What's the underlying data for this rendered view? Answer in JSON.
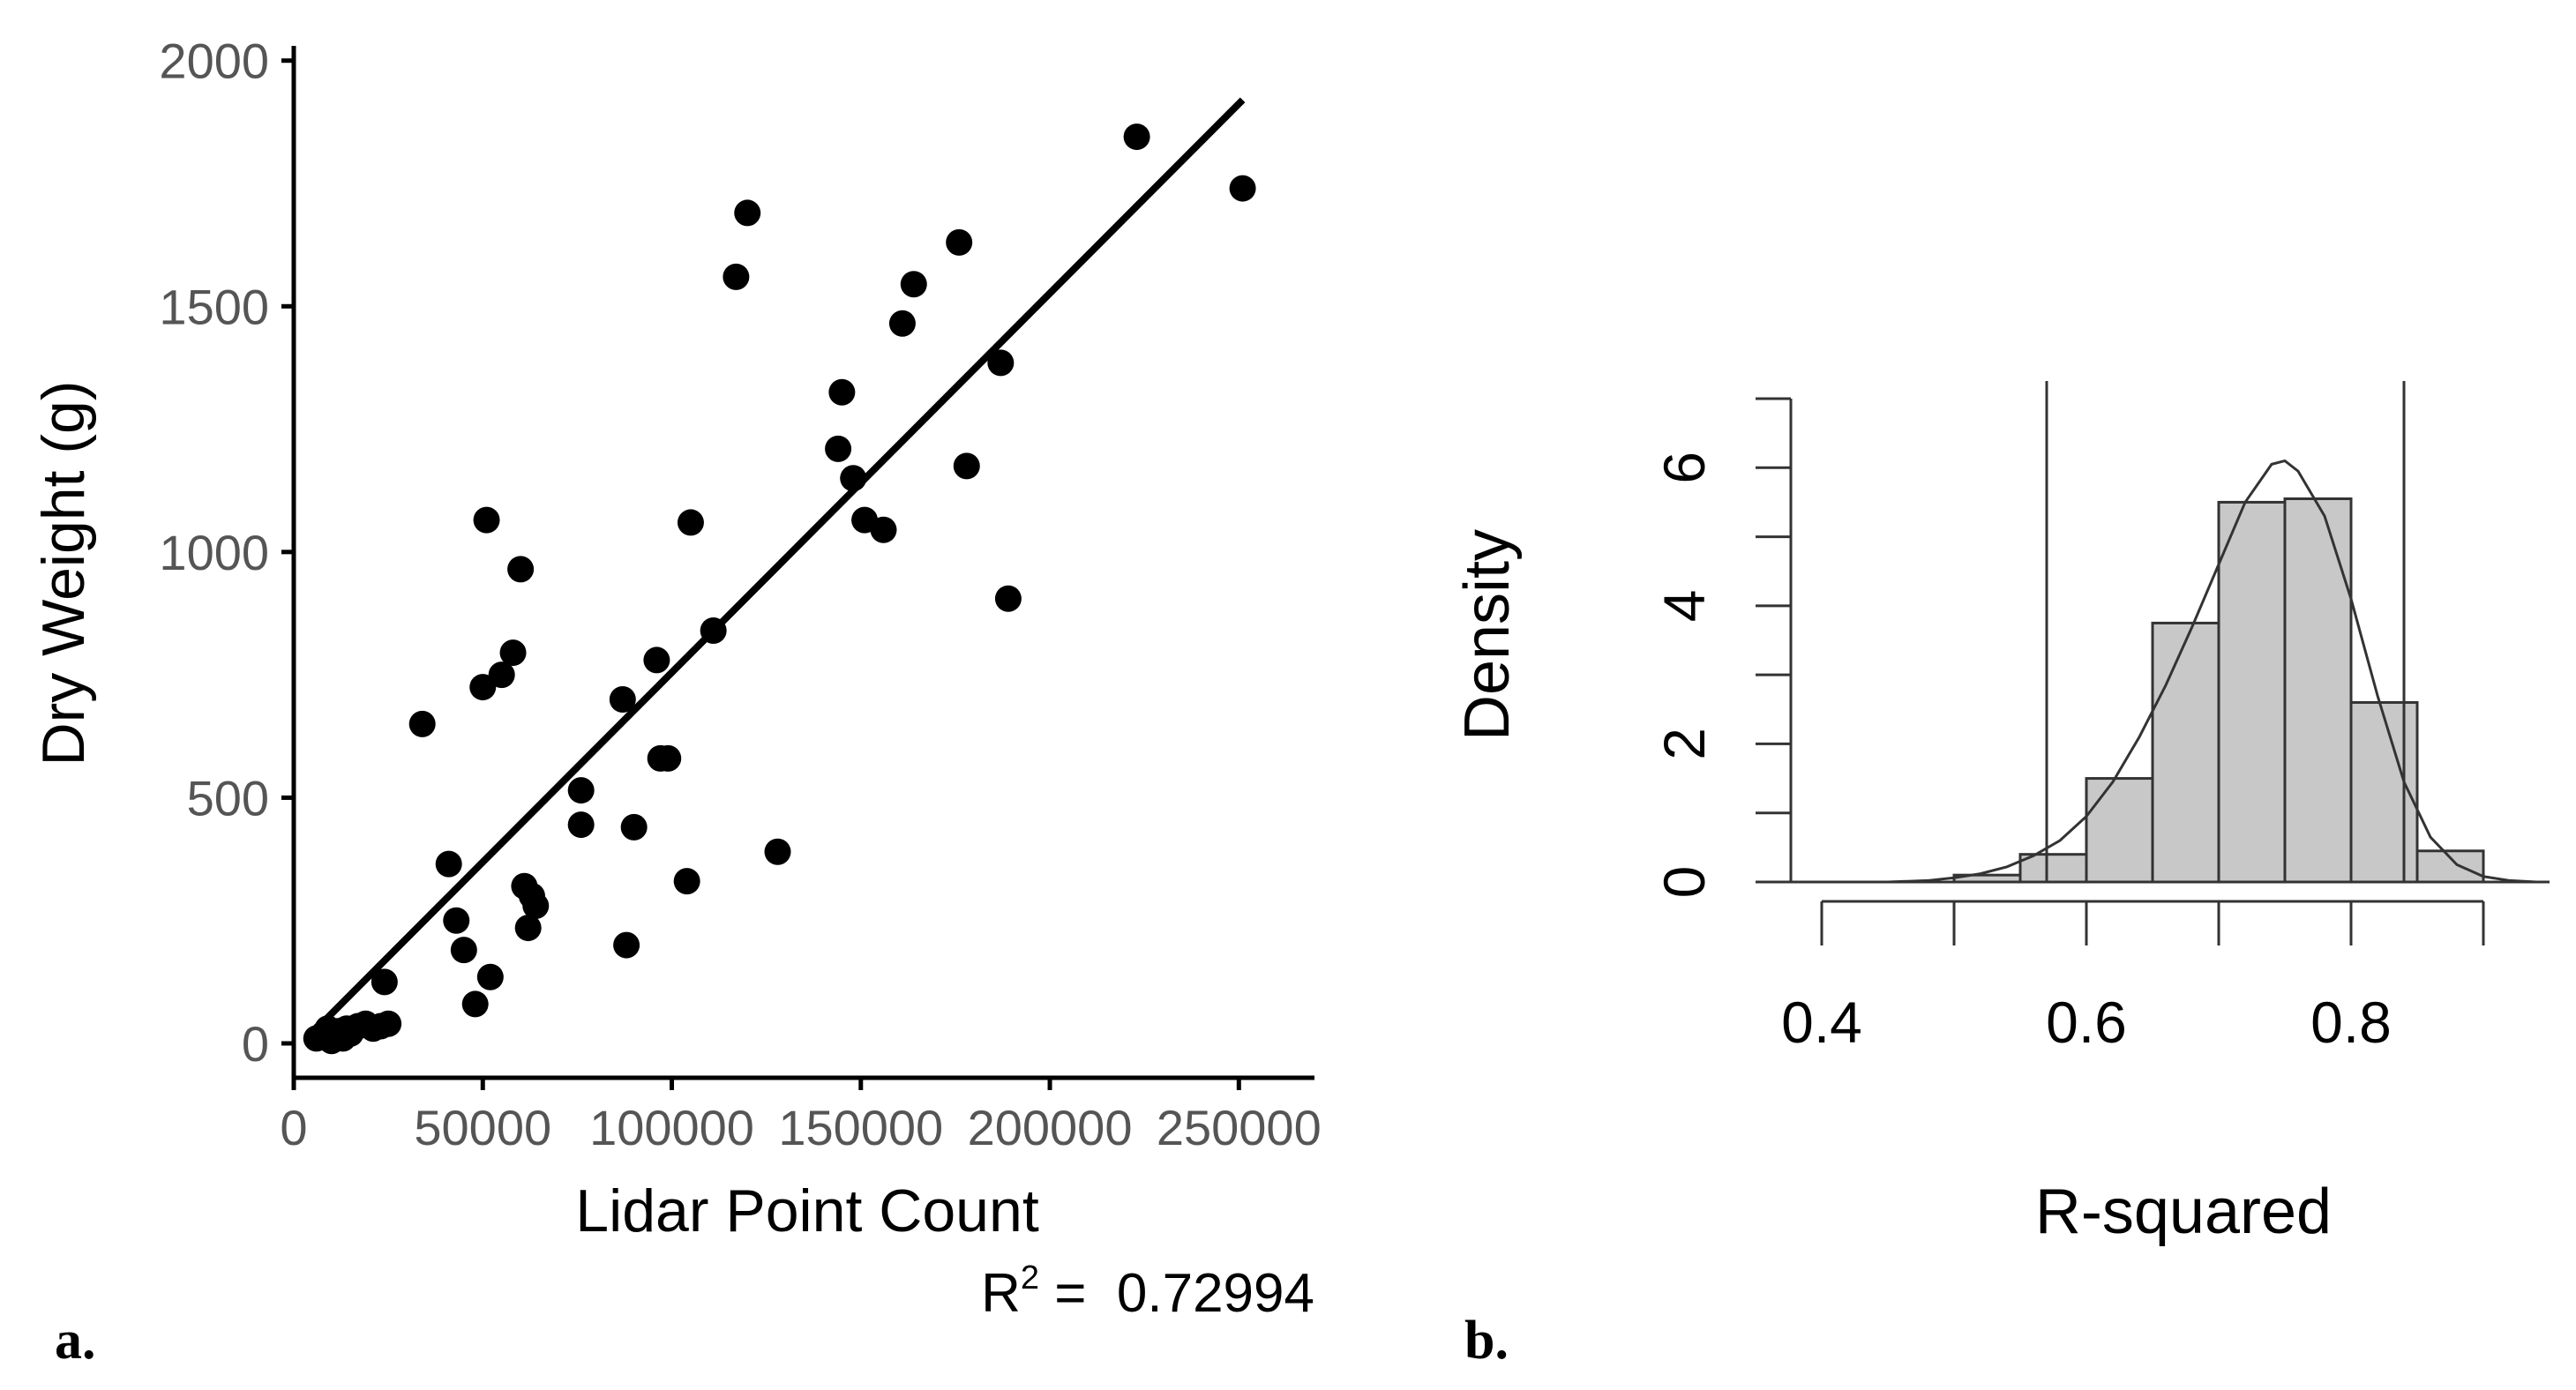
{
  "panels": {
    "a": {
      "letter": "a."
    },
    "b": {
      "letter": "b."
    }
  },
  "colors": {
    "points": "#000000",
    "bar_fill": "#c8c8c8",
    "axis_a": "#000000",
    "tick_label_a": "#555555",
    "axis_b": "#333333"
  },
  "chart_data": [
    {
      "type": "scatter",
      "title": "",
      "xlabel": "Lidar Point Count",
      "ylabel": "Dry Weight (g)",
      "xlim": [
        0,
        270000
      ],
      "ylim": [
        -70,
        2030
      ],
      "xticks": [
        0,
        50000,
        100000,
        150000,
        200000,
        250000
      ],
      "xtick_labels": [
        "0",
        "50000",
        "100000",
        "150000",
        "200000",
        "250000"
      ],
      "yticks": [
        0,
        500,
        1000,
        1500,
        2000
      ],
      "ytick_labels": [
        "0",
        "500",
        "1000",
        "1500",
        "2000"
      ],
      "grid": false,
      "annotation": {
        "label": "R",
        "sup": "2",
        "rest": " =  0.72994"
      },
      "fit_line": {
        "x": [
          8000,
          251000
        ],
        "y": [
          45,
          1920
        ]
      },
      "series": [
        {
          "x": [
            6000,
            8000,
            9000,
            10000,
            11000,
            12000,
            13000,
            14000,
            15000,
            17000,
            19000,
            21000,
            23000,
            25000,
            24000,
            34000,
            41000,
            43000,
            45000,
            48000,
            50000,
            52000,
            55000,
            58000,
            60000,
            51000,
            61000,
            62000,
            64000,
            63000,
            76000,
            76000,
            87000,
            88000,
            90000,
            96000,
            97000,
            99000,
            104000,
            105000,
            111000,
            117000,
            120000,
            128000,
            144000,
            145000,
            148000,
            151000,
            156000,
            161000,
            164000,
            176000,
            178000,
            187000,
            189000,
            223000,
            251000
          ],
          "y": [
            10,
            20,
            30,
            5,
            15,
            25,
            10,
            30,
            20,
            35,
            40,
            30,
            35,
            40,
            125,
            650,
            365,
            250,
            190,
            80,
            725,
            135,
            750,
            795,
            965,
            1065,
            320,
            235,
            280,
            300,
            515,
            445,
            700,
            200,
            440,
            780,
            580,
            580,
            330,
            1060,
            840,
            1560,
            1690,
            390,
            1210,
            1325,
            1150,
            1065,
            1045,
            1465,
            1545,
            1630,
            1175,
            1385,
            905,
            1845,
            1740
          ]
        }
      ]
    },
    {
      "type": "bar",
      "title": "",
      "xlabel": "R-squared",
      "ylabel": "Density",
      "xlim": [
        0.4,
        0.9
      ],
      "ylim": [
        0,
        7
      ],
      "xticks": [
        0.4,
        0.6,
        0.8
      ],
      "xtick_labels": [
        "0.4",
        "0.6",
        "0.8"
      ],
      "yticks": [
        0,
        2,
        4,
        6
      ],
      "ytick_labels": [
        "0",
        "2",
        "4",
        "6"
      ],
      "grid": false,
      "bins": [
        [
          0.5,
          0.55
        ],
        [
          0.55,
          0.6
        ],
        [
          0.6,
          0.65
        ],
        [
          0.65,
          0.7
        ],
        [
          0.7,
          0.75
        ],
        [
          0.75,
          0.8
        ],
        [
          0.8,
          0.85
        ],
        [
          0.85,
          0.9
        ]
      ],
      "values": [
        0.1,
        0.4,
        1.5,
        3.75,
        5.5,
        5.55,
        2.6,
        0.45
      ],
      "density_curve": {
        "x": [
          0.45,
          0.48,
          0.5,
          0.52,
          0.54,
          0.56,
          0.58,
          0.6,
          0.62,
          0.64,
          0.66,
          0.68,
          0.7,
          0.72,
          0.74,
          0.75,
          0.76,
          0.78,
          0.8,
          0.82,
          0.84,
          0.86,
          0.88,
          0.9,
          0.92,
          0.94
        ],
        "y": [
          0.0,
          0.02,
          0.06,
          0.12,
          0.22,
          0.38,
          0.6,
          0.95,
          1.45,
          2.1,
          2.85,
          3.7,
          4.6,
          5.5,
          6.05,
          6.1,
          5.95,
          5.3,
          4.1,
          2.7,
          1.45,
          0.65,
          0.25,
          0.08,
          0.02,
          0.0
        ]
      },
      "vlines": [
        0.57,
        0.84
      ]
    }
  ]
}
